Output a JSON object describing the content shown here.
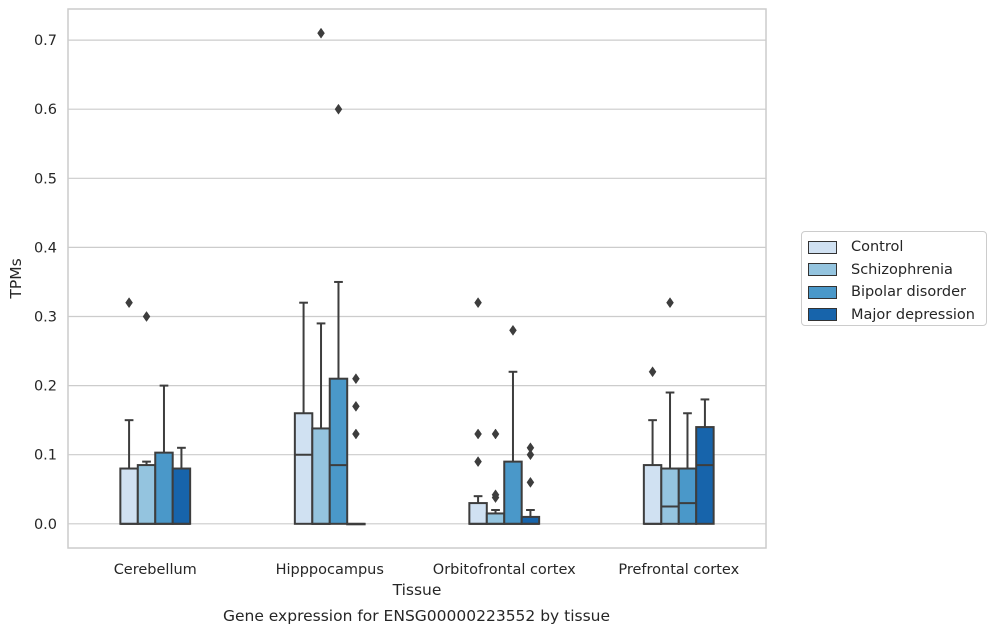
{
  "chart_data": {
    "type": "box",
    "xlabel": "Tissue",
    "ylabel": "TPMs",
    "ylim": [
      -0.035,
      0.745
    ],
    "yticks": [
      0.0,
      0.1,
      0.2,
      0.3,
      0.4,
      0.5,
      0.6,
      0.7
    ],
    "ytick_labels": [
      "0.0",
      "0.1",
      "0.2",
      "0.3",
      "0.4",
      "0.5",
      "0.6",
      "0.7"
    ],
    "grid": "horizontal",
    "legend_position": "right",
    "categories": [
      "Cerebellum",
      "Hipppocampus",
      "Orbitofrontal cortex",
      "Prefrontal cortex"
    ],
    "series": [
      {
        "name": "Control",
        "color": "#d0e1f2",
        "boxes": [
          {
            "q1": 0.0,
            "median": 0.0,
            "q3": 0.08,
            "whisker_low": 0.0,
            "whisker_high": 0.15,
            "outliers": [
              0.32
            ]
          },
          {
            "q1": 0.0,
            "median": 0.1,
            "q3": 0.16,
            "whisker_low": 0.0,
            "whisker_high": 0.32,
            "outliers": []
          },
          {
            "q1": 0.0,
            "median": 0.0,
            "q3": 0.03,
            "whisker_low": 0.0,
            "whisker_high": 0.04,
            "outliers": [
              0.09,
              0.13,
              0.32
            ]
          },
          {
            "q1": 0.0,
            "median": 0.0,
            "q3": 0.085,
            "whisker_low": 0.0,
            "whisker_high": 0.15,
            "outliers": [
              0.22
            ]
          }
        ]
      },
      {
        "name": "Schizophrenia",
        "color": "#94c4df",
        "boxes": [
          {
            "q1": 0.0,
            "median": 0.0,
            "q3": 0.085,
            "whisker_low": 0.0,
            "whisker_high": 0.09,
            "outliers": [
              0.3
            ]
          },
          {
            "q1": 0.0,
            "median": 0.0,
            "q3": 0.138,
            "whisker_low": 0.0,
            "whisker_high": 0.29,
            "outliers": [
              0.71
            ]
          },
          {
            "q1": 0.0,
            "median": 0.0,
            "q3": 0.015,
            "whisker_low": 0.0,
            "whisker_high": 0.02,
            "outliers": [
              0.038,
              0.042,
              0.13
            ]
          },
          {
            "q1": 0.0,
            "median": 0.025,
            "q3": 0.08,
            "whisker_low": 0.0,
            "whisker_high": 0.19,
            "outliers": [
              0.32
            ]
          }
        ]
      },
      {
        "name": "Bipolar disorder",
        "color": "#4a98c9",
        "boxes": [
          {
            "q1": 0.0,
            "median": 0.0,
            "q3": 0.103,
            "whisker_low": 0.0,
            "whisker_high": 0.2,
            "outliers": []
          },
          {
            "q1": 0.0,
            "median": 0.085,
            "q3": 0.21,
            "whisker_low": 0.0,
            "whisker_high": 0.35,
            "outliers": [
              0.6
            ]
          },
          {
            "q1": 0.0,
            "median": 0.0,
            "q3": 0.09,
            "whisker_low": 0.0,
            "whisker_high": 0.22,
            "outliers": [
              0.28
            ]
          },
          {
            "q1": 0.0,
            "median": 0.03,
            "q3": 0.08,
            "whisker_low": 0.0,
            "whisker_high": 0.16,
            "outliers": []
          }
        ]
      },
      {
        "name": "Major depression",
        "color": "#1764ab",
        "boxes": [
          {
            "q1": 0.0,
            "median": 0.0,
            "q3": 0.08,
            "whisker_low": 0.0,
            "whisker_high": 0.11,
            "outliers": []
          },
          {
            "q1": 0.0,
            "median": 0.0,
            "q3": 0.0,
            "whisker_low": 0.0,
            "whisker_high": 0.0,
            "outliers": [
              0.13,
              0.17,
              0.21
            ]
          },
          {
            "q1": 0.0,
            "median": 0.0,
            "q3": 0.01,
            "whisker_low": 0.0,
            "whisker_high": 0.02,
            "outliers": [
              0.06,
              0.1,
              0.11
            ]
          },
          {
            "q1": 0.0,
            "median": 0.085,
            "q3": 0.14,
            "whisker_low": 0.0,
            "whisker_high": 0.18,
            "outliers": []
          }
        ]
      }
    ]
  },
  "caption": "Gene expression for ENSG00000223552 by tissue"
}
